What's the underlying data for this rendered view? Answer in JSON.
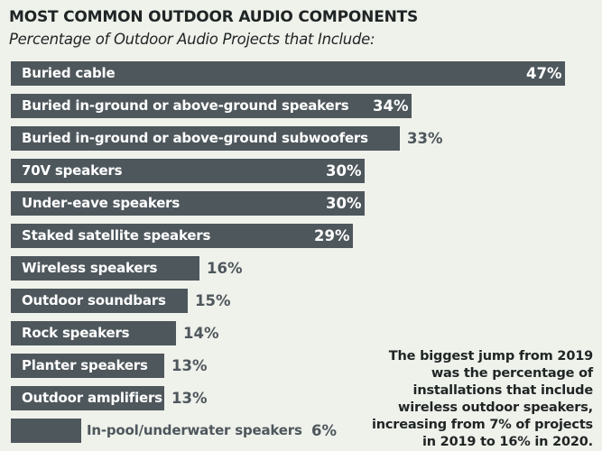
{
  "chart_data": {
    "type": "bar",
    "orientation": "horizontal",
    "title": "MOST COMMON OUTDOOR AUDIO COMPONENTS",
    "subtitle": "Percentage of Outdoor Audio Projects that Include:",
    "categories": [
      "Buried cable",
      "Buried in-ground or above-ground speakers",
      "Buried in-ground or above-ground subwoofers",
      "70V speakers",
      "Under-eave speakers",
      "Staked satellite speakers",
      "Wireless speakers",
      "Outdoor soundbars",
      "Rock speakers",
      "Planter speakers",
      "Outdoor amplifiers",
      "In-pool/underwater speakers"
    ],
    "values": [
      47,
      34,
      33,
      30,
      30,
      29,
      16,
      15,
      14,
      13,
      13,
      6
    ],
    "value_labels": [
      "47%",
      "34%",
      "33%",
      "30%",
      "30%",
      "29%",
      "16%",
      "15%",
      "14%",
      "13%",
      "13%",
      "6%"
    ],
    "xlim": [
      0,
      47
    ],
    "unit": "%",
    "annotation": "The biggest jump from 2019 was the percentage of installations that include wireless outdoor speakers, increasing from 7% of projects in 2019 to 16% in 2020."
  },
  "colors": {
    "bar": "#4e575c",
    "background": "#eff1eb",
    "text_on_bar": "#ffffff",
    "text_off_bar": "#4e575c",
    "title": "#1f2524"
  }
}
